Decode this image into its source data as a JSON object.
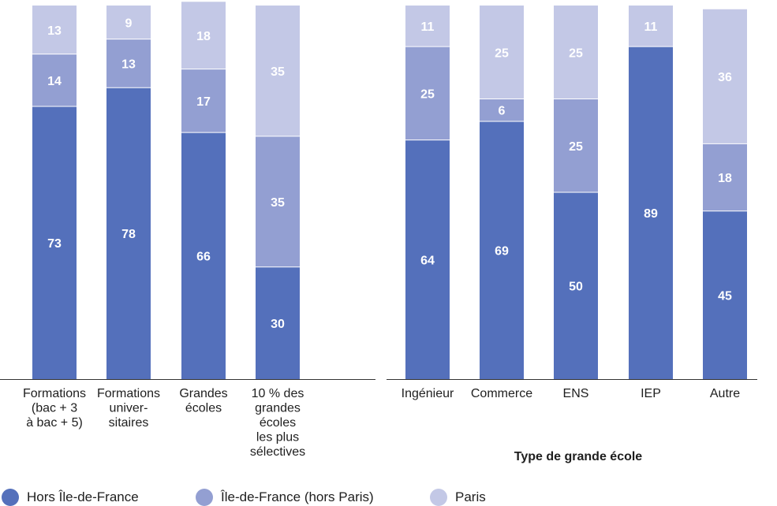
{
  "colors": {
    "hors_idf": "#5470bb",
    "idf_hors_paris": "#939fd2",
    "paris": "#c3c8e6",
    "axis": "#333333",
    "text": "#1e1e1e",
    "value_text": "#ffffff"
  },
  "legend": {
    "hors_idf": "Hors Île-de-France",
    "idf_hors_paris": "Île-de-France (hors Paris)",
    "paris": "Paris"
  },
  "chart_data": [
    {
      "type": "bar",
      "stacked": true,
      "categories": [
        [
          "Formations",
          "(bac + 3",
          "à bac + 5)"
        ],
        [
          "Formations",
          "univer-",
          "sitaires"
        ],
        [
          "Grandes",
          "écoles"
        ],
        [
          "10 % des",
          "grandes",
          "écoles",
          "les plus",
          "sélectives"
        ]
      ],
      "series": [
        {
          "name": "Hors Île-de-France",
          "values": [
            73,
            78,
            66,
            30
          ]
        },
        {
          "name": "Île-de-France (hors Paris)",
          "values": [
            14,
            13,
            17,
            35
          ]
        },
        {
          "name": "Paris",
          "values": [
            13,
            9,
            18,
            35
          ]
        }
      ],
      "xlabel": "",
      "ylim": [
        0,
        100
      ]
    },
    {
      "type": "bar",
      "stacked": true,
      "categories": [
        [
          "Ingénieur"
        ],
        [
          "Commerce"
        ],
        [
          "ENS"
        ],
        [
          "IEP"
        ],
        [
          "Autre"
        ]
      ],
      "series": [
        {
          "name": "Hors Île-de-France",
          "values": [
            64,
            69,
            50,
            89,
            45
          ]
        },
        {
          "name": "Île-de-France (hors Paris)",
          "values": [
            25,
            6,
            25,
            0,
            18
          ]
        },
        {
          "name": "Paris",
          "values": [
            11,
            25,
            25,
            11,
            36
          ]
        }
      ],
      "xlabel": "Type de grande école",
      "ylim": [
        0,
        100
      ]
    }
  ]
}
